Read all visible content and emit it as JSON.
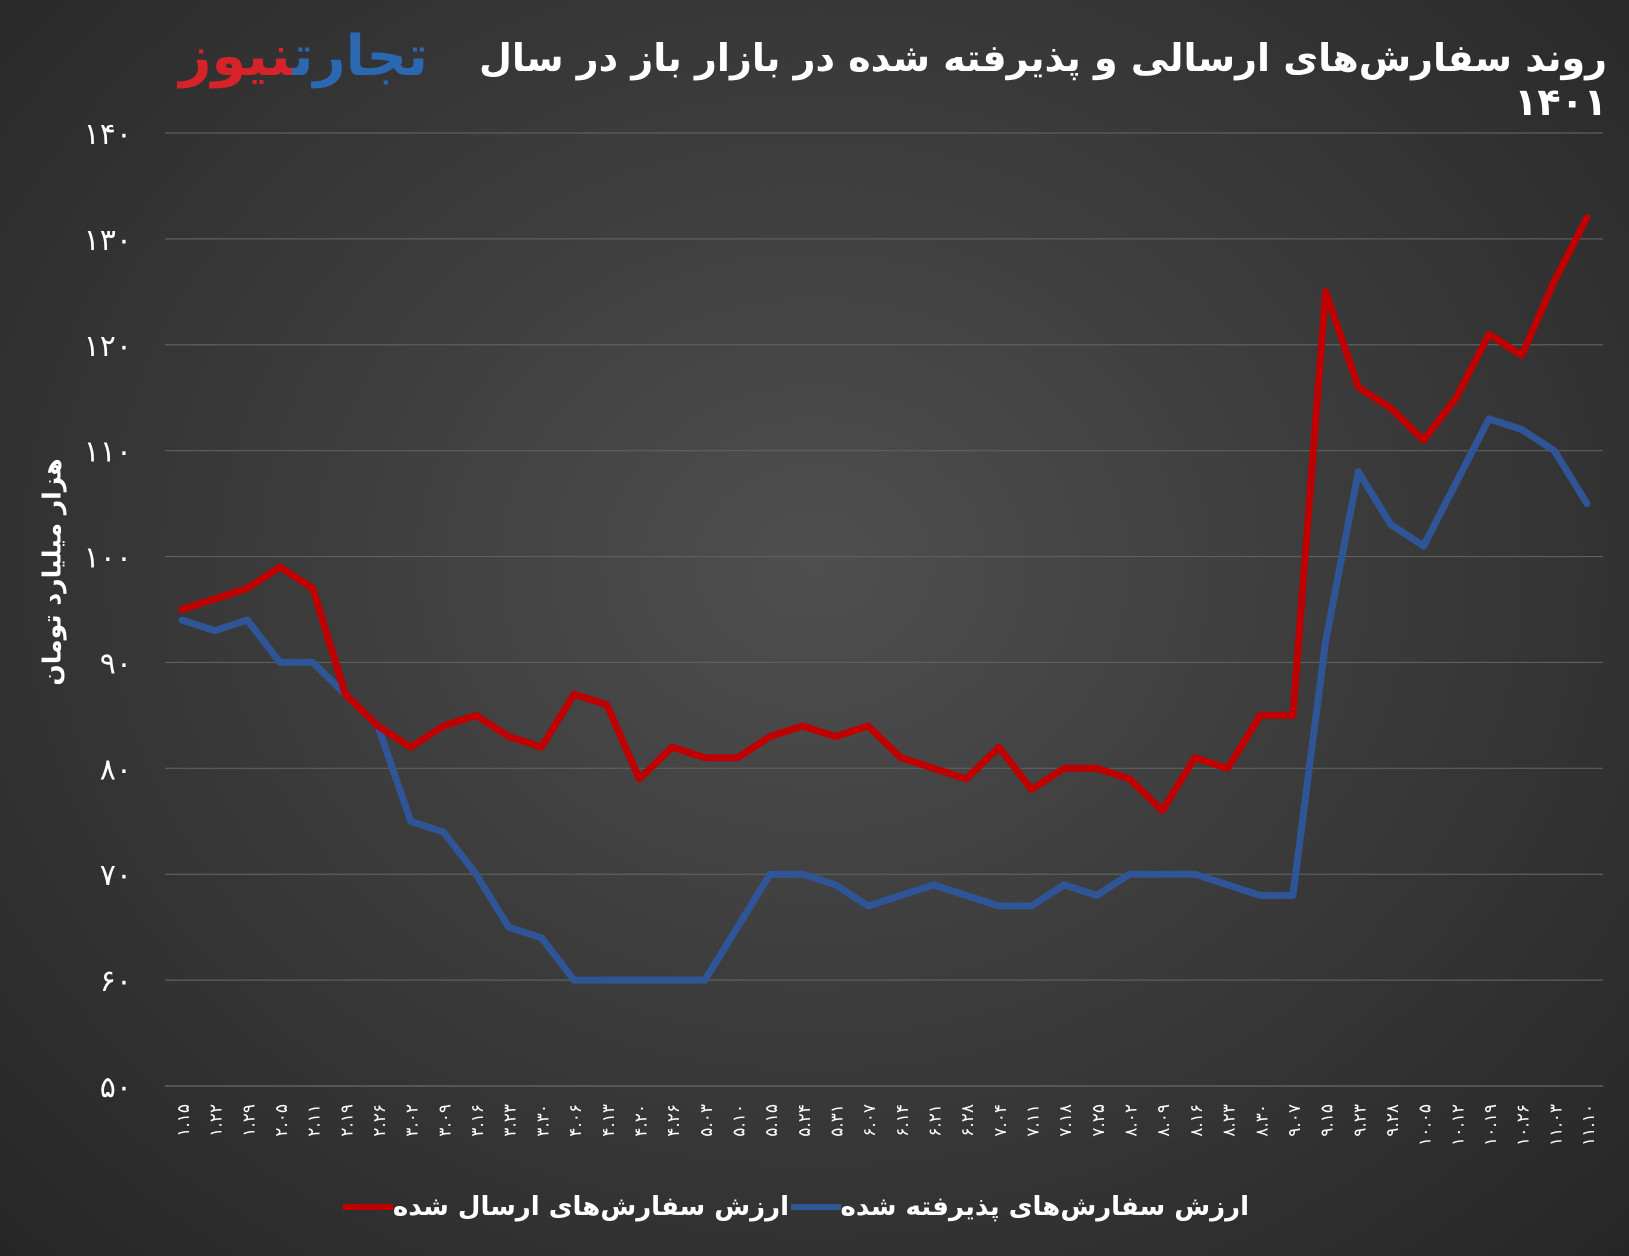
{
  "header": {
    "title": "روند سفارش‌های ارسالی و پذیرفته شده در بازار باز در سال ۱۴۰۱",
    "logo_part1": "تجارت",
    "logo_part2": "نیوز"
  },
  "colors": {
    "sent": "#c00000",
    "accepted": "#2f5597",
    "logo_red": "#d6232a",
    "logo_blue": "#2c67b2",
    "grid": "#5f5f5f",
    "text": "#ffffff"
  },
  "chart_data": {
    "type": "line",
    "title": "روند سفارش‌های ارسالی و پذیرفته شده در بازار باز در سال ۱۴۰۱",
    "xlabel": "",
    "ylabel": "هزار میلیارد تومان",
    "ylim": [
      50,
      140
    ],
    "yticks": [
      50,
      60,
      70,
      80,
      90,
      100,
      110,
      120,
      130,
      140
    ],
    "ytick_labels": [
      "۵۰",
      "۶۰",
      "۷۰",
      "۸۰",
      "۹۰",
      "۱۰۰",
      "۱۱۰",
      "۱۲۰",
      "۱۳۰",
      "۱۴۰"
    ],
    "grid": true,
    "legend_position": "bottom",
    "categories": [
      "۱.۱۵",
      "۱.۲۲",
      "۱.۲۹",
      "۲.۰۵",
      "۲.۱۱",
      "۲.۱۹",
      "۲.۲۶",
      "۳.۰۲",
      "۳.۰۹",
      "۳.۱۶",
      "۳.۲۳",
      "۳.۳۰",
      "۴.۰۶",
      "۴.۱۳",
      "۴.۲۰",
      "۴.۲۶",
      "۵.۰۳",
      "۵.۱۰",
      "۵.۱۵",
      "۵.۲۴",
      "۵.۳۱",
      "۶.۰۷",
      "۶.۱۴",
      "۶.۲۱",
      "۶.۲۸",
      "۷.۰۴",
      "۷.۱۱",
      "۷.۱۸",
      "۷.۲۵",
      "۸.۰۲",
      "۸.۰۹",
      "۸.۱۶",
      "۸.۲۳",
      "۸.۳۰",
      "۹.۰۷",
      "۹.۱۵",
      "۹.۲۳",
      "۹.۲۸",
      "۱۰.۰۵",
      "۱۰.۱۲",
      "۱۰.۱۹",
      "۱۰.۲۶",
      "۱۱.۰۳",
      "۱۱.۱۰"
    ],
    "series": [
      {
        "name": "ارزش سفارش‌های ارسال شده",
        "color": "#c00000",
        "values": [
          95,
          96,
          97,
          99,
          97,
          87,
          84,
          82,
          84,
          85,
          83,
          82,
          87,
          86,
          79,
          82,
          81,
          81,
          83,
          84,
          83,
          84,
          81,
          80,
          79,
          82,
          78,
          80,
          80,
          79,
          76,
          81,
          80,
          85,
          85,
          125,
          116,
          114,
          111,
          115,
          121,
          119,
          126,
          132
        ]
      },
      {
        "name": "ارزش سفارش‌های پذیرفته شده",
        "color": "#2f5597",
        "values": [
          94,
          93,
          94,
          90,
          90,
          87,
          84,
          75,
          74,
          70,
          65,
          64,
          60,
          60,
          60,
          60,
          60,
          65,
          70,
          70,
          69,
          67,
          68,
          69,
          68,
          67,
          67,
          69,
          68,
          70,
          70,
          70,
          69,
          68,
          68,
          92,
          108,
          103,
          101,
          107,
          113,
          112,
          110,
          105
        ]
      }
    ]
  }
}
